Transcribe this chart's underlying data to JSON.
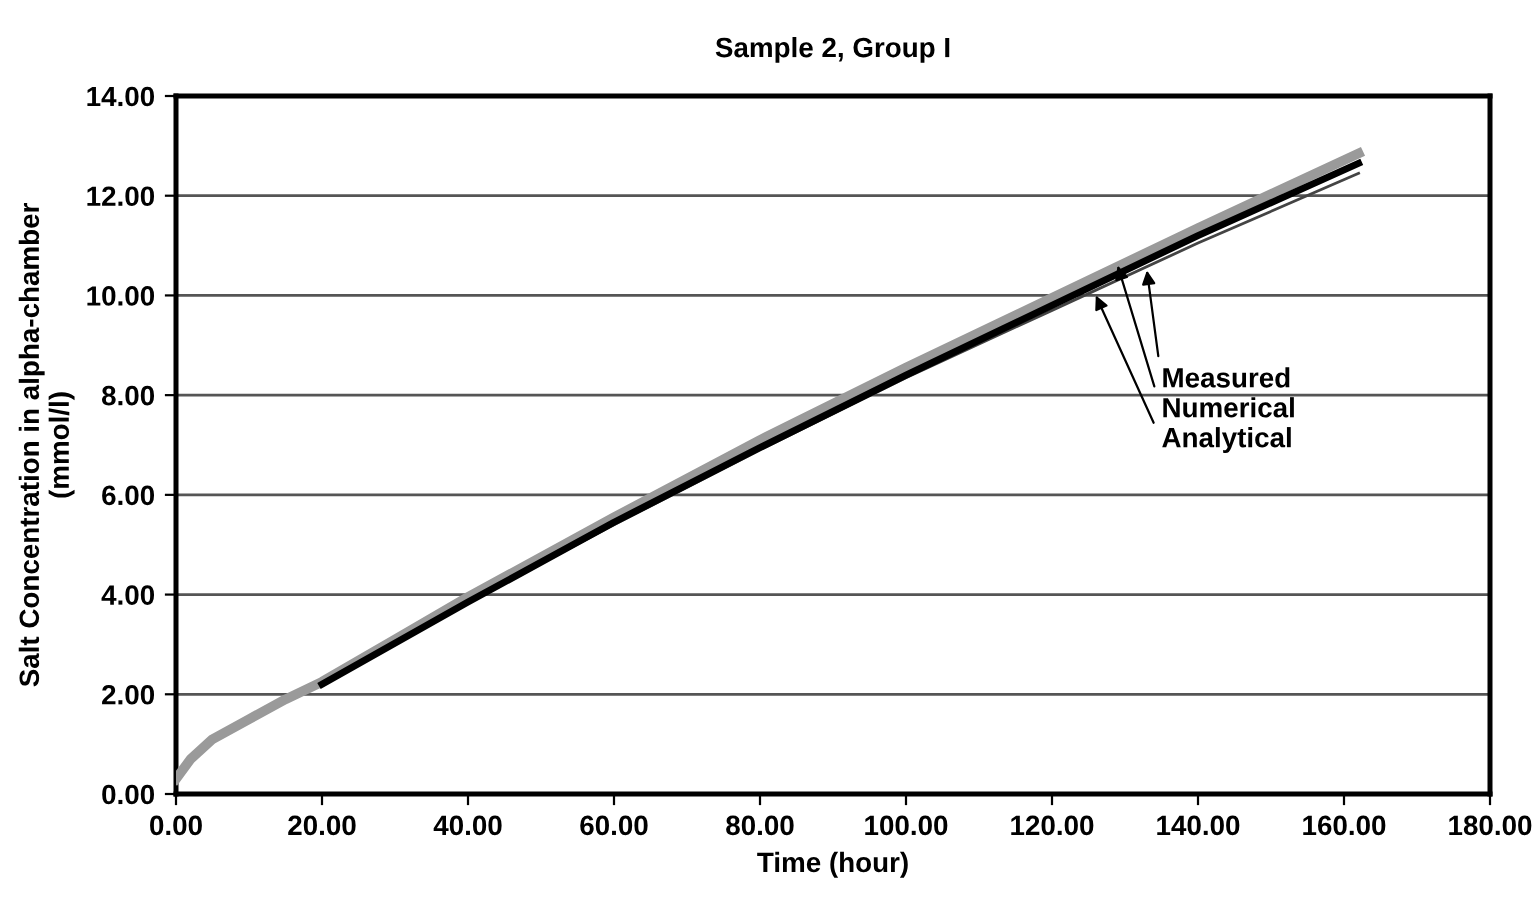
{
  "chart_data": {
    "type": "line",
    "title": "Sample 2, Group I",
    "xlabel": "Time (hour)",
    "ylabel": "Salt Concentration in alpha-chamber\n(mmol/l)",
    "xlim": [
      0,
      180
    ],
    "xticks": [
      {
        "value": 0,
        "label": "0.00"
      },
      {
        "value": 20,
        "label": "20.00"
      },
      {
        "value": 40,
        "label": "40.00"
      },
      {
        "value": 60,
        "label": "60.00"
      },
      {
        "value": 80,
        "label": "80.00"
      },
      {
        "value": 100,
        "label": "100.00"
      },
      {
        "value": 120,
        "label": "120.00"
      },
      {
        "value": 140,
        "label": "140.00"
      },
      {
        "value": 160,
        "label": "160.00"
      },
      {
        "value": 180,
        "label": "180.00"
      }
    ],
    "ylim": [
      0,
      14
    ],
    "yticks": [
      {
        "value": 0,
        "label": "0.00"
      },
      {
        "value": 2,
        "label": "2.00"
      },
      {
        "value": 4,
        "label": "4.00"
      },
      {
        "value": 6,
        "label": "6.00"
      },
      {
        "value": 8,
        "label": "8.00"
      },
      {
        "value": 10,
        "label": "10.00"
      },
      {
        "value": 12,
        "label": "12.00"
      },
      {
        "value": 14,
        "label": "14.00"
      }
    ],
    "grid": "y",
    "legend": false,
    "series": [
      {
        "color": "#9a9a9a",
        "x": [
          0,
          2,
          5,
          10,
          15,
          20,
          30,
          40,
          60,
          80,
          100,
          120,
          140,
          162
        ],
        "values": [
          0.3,
          0.7,
          1.1,
          1.5,
          1.9,
          2.25,
          3.1,
          3.95,
          5.55,
          7.1,
          8.55,
          9.95,
          11.35,
          12.85
        ]
      },
      {
        "color": "#000000",
        "x": [
          20,
          40,
          60,
          80,
          100,
          120,
          140,
          162
        ],
        "values": [
          2.2,
          3.85,
          5.45,
          6.95,
          8.4,
          9.8,
          11.2,
          12.65
        ]
      },
      {
        "color": "#444444",
        "x": [
          20,
          40,
          60,
          80,
          100,
          120,
          140,
          162
        ],
        "values": [
          2.2,
          3.85,
          5.4,
          6.9,
          8.35,
          9.7,
          11.05,
          12.45
        ]
      }
    ],
    "annotations": [
      {
        "text": "Measured",
        "x": 133,
        "y": 10.5
      },
      {
        "text": "Numerical",
        "x": 129,
        "y": 10.6
      },
      {
        "text": "Analytical",
        "x": 126,
        "y": 10.0
      }
    ]
  }
}
